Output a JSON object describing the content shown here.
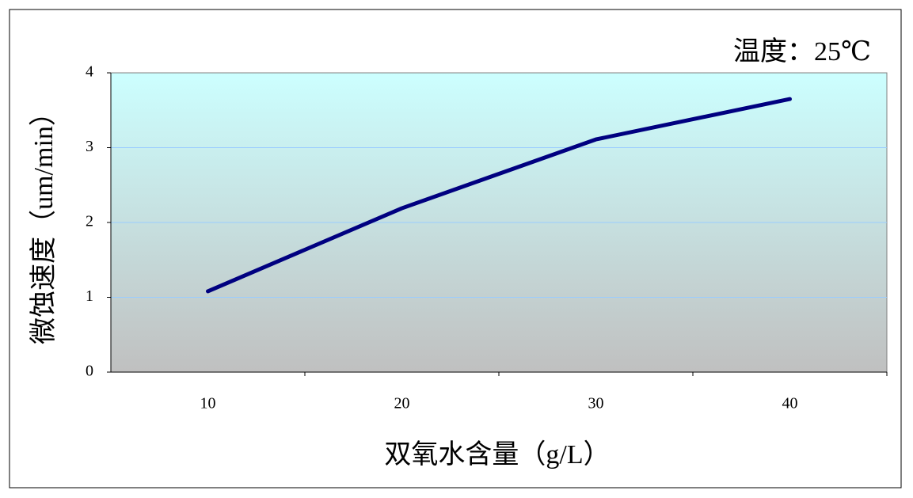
{
  "chart_data": {
    "type": "line",
    "annotation": "温度：25℃",
    "x_label": "双氧水含量（g/L）",
    "y_label": "微蚀速度（um/min）",
    "categories": [
      "10",
      "20",
      "30",
      "40"
    ],
    "series": [
      {
        "name": "微蚀速度",
        "color": "#000080",
        "values": [
          1.08,
          2.19,
          3.11,
          3.65
        ]
      }
    ],
    "ylim": [
      0,
      4
    ],
    "yticks": [
      0,
      1,
      2,
      3,
      4
    ],
    "grid": true
  }
}
